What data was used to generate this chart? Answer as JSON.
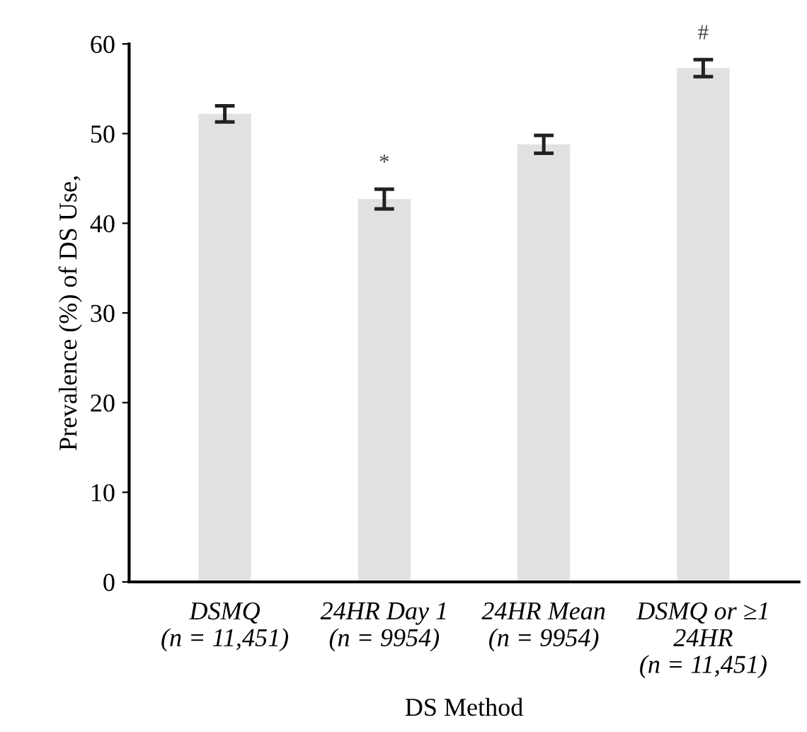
{
  "chart_data": {
    "type": "bar",
    "xlabel": "DS Method",
    "ylabel": "Prevalence (%) of DS Use,",
    "categories": [
      "DSMQ\n(n = 11,451)",
      "24HR Day 1\n(n = 9954)",
      "24HR Mean\n(n = 9954)",
      "DSMQ or ≥1\n24HR\n(n = 11,451)"
    ],
    "values": [
      52.2,
      42.7,
      48.8,
      57.3
    ],
    "errors": [
      0.9,
      1.1,
      1.0,
      0.95
    ],
    "color": "#e0e1e3",
    "value_labels": [
      null,
      "*",
      null,
      "#"
    ],
    "ylim": [
      0,
      60
    ],
    "yticks": [
      0,
      10,
      20,
      30,
      40,
      50,
      60
    ],
    "grid": false
  }
}
